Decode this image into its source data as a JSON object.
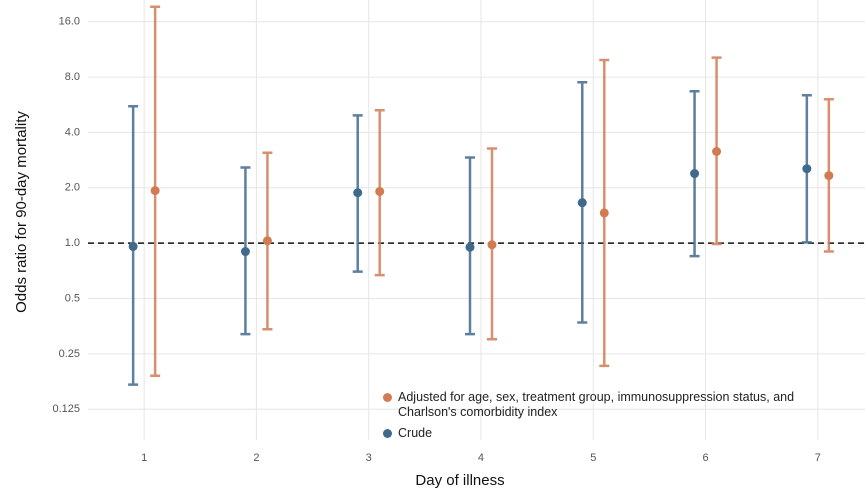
{
  "chart_data": {
    "type": "errorbar",
    "x_label": "Day of illness",
    "y_label": "Odds ratio for 90-day mortality",
    "x": [
      1,
      2,
      3,
      4,
      5,
      6,
      7
    ],
    "xlim": [
      0.5,
      7.42
    ],
    "xticks": [
      1,
      2,
      3,
      4,
      5,
      6,
      7
    ],
    "ylim": [
      0.085,
      21
    ],
    "log_y": true,
    "yticks": [
      {
        "value": 0.125,
        "label": "0.125"
      },
      0.25,
      0.5,
      {
        "value": 1,
        "label": "1.0"
      },
      {
        "value": 2,
        "label": "2.0"
      },
      {
        "value": 4,
        "label": "4.0"
      },
      {
        "value": 8,
        "label": "8.0"
      },
      {
        "value": 16,
        "label": "16.0"
      }
    ],
    "grid": true,
    "reference_line": 1,
    "series": [
      {
        "name": "Adjusted for age, sex, treatment group, immunosuppression status, and Charlson's comorbidity index",
        "color": "#d27b53",
        "values": [
          1.93,
          1.03,
          1.91,
          0.98,
          1.46,
          3.15,
          2.33
        ],
        "lower": [
          0.19,
          0.34,
          0.67,
          0.3,
          0.215,
          0.99,
          0.9
        ],
        "upper": [
          19.3,
          3.1,
          5.28,
          3.27,
          9.9,
          10.2,
          6.06
        ]
      },
      {
        "name": "Crude",
        "color": "#3f6a8c",
        "values": [
          0.96,
          0.9,
          1.88,
          0.95,
          1.66,
          2.39,
          2.54
        ],
        "lower": [
          0.17,
          0.32,
          0.7,
          0.32,
          0.37,
          0.85,
          1.01
        ],
        "upper": [
          5.55,
          2.58,
          4.95,
          2.92,
          7.5,
          6.7,
          6.37
        ]
      }
    ],
    "legend_position": "bottom"
  }
}
